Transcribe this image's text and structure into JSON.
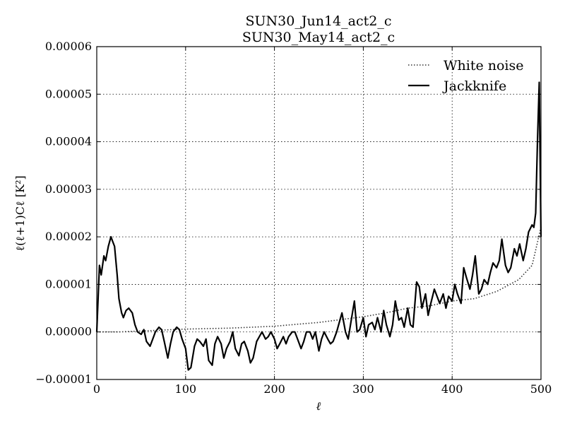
{
  "chart_data": {
    "type": "line",
    "title_lines": [
      "SUN30_Jun14_act2_c",
      "SUN30_May14_act2_c"
    ],
    "xlabel": "ℓ",
    "ylabel": "ℓ(ℓ+1)Cℓ [K²]",
    "xlim": [
      0,
      500
    ],
    "ylim": [
      -1e-05,
      6e-05
    ],
    "xticks": [
      0,
      100,
      200,
      300,
      400,
      500
    ],
    "xtick_labels": [
      "0",
      "100",
      "200",
      "300",
      "400",
      "500"
    ],
    "yticks": [
      -1e-05,
      0,
      1e-05,
      2e-05,
      3e-05,
      4e-05,
      5e-05,
      6e-05
    ],
    "ytick_labels": [
      "−0.00001",
      "0.00000",
      "0.00001",
      "0.00002",
      "0.00003",
      "0.00004",
      "0.00005",
      "0.00006"
    ],
    "grid": true,
    "legend_position": "top-right",
    "series": [
      {
        "name": "White noise",
        "style": "dotted",
        "color": "#333333",
        "x": [
          0,
          25,
          50,
          75,
          100,
          125,
          150,
          175,
          200,
          225,
          250,
          275,
          300,
          325,
          350,
          375,
          400,
          425,
          450,
          475,
          490,
          500
        ],
        "y": [
          0.0,
          0.0,
          2e-07,
          4e-07,
          6e-07,
          7e-07,
          8e-07,
          1e-06,
          1.2e-06,
          1.6e-06,
          2e-06,
          2.6e-06,
          3.2e-06,
          4e-06,
          5e-06,
          5.5e-06,
          6.5e-06,
          7e-06,
          8.5e-06,
          1.1e-05,
          1.4e-05,
          2.2e-05
        ]
      },
      {
        "name": "Jackknife",
        "style": "solid",
        "color": "#000000",
        "x": [
          0,
          3,
          5,
          8,
          10,
          13,
          16,
          18,
          20,
          23,
          25,
          28,
          30,
          33,
          36,
          40,
          43,
          46,
          50,
          53,
          56,
          60,
          63,
          66,
          70,
          73,
          76,
          80,
          83,
          86,
          90,
          93,
          96,
          100,
          103,
          106,
          110,
          113,
          116,
          120,
          123,
          126,
          130,
          133,
          136,
          140,
          143,
          146,
          150,
          153,
          156,
          160,
          163,
          166,
          170,
          173,
          176,
          180,
          183,
          186,
          190,
          193,
          196,
          200,
          203,
          206,
          210,
          213,
          216,
          220,
          223,
          226,
          230,
          233,
          236,
          240,
          243,
          246,
          250,
          253,
          256,
          260,
          263,
          266,
          270,
          273,
          276,
          280,
          283,
          286,
          290,
          293,
          296,
          300,
          303,
          306,
          310,
          313,
          316,
          320,
          323,
          326,
          330,
          333,
          336,
          340,
          343,
          346,
          350,
          353,
          356,
          360,
          363,
          366,
          370,
          373,
          376,
          380,
          383,
          386,
          390,
          393,
          396,
          400,
          403,
          406,
          410,
          413,
          416,
          420,
          423,
          426,
          430,
          433,
          436,
          440,
          443,
          446,
          450,
          453,
          456,
          460,
          463,
          466,
          470,
          473,
          476,
          480,
          483,
          486,
          490,
          492,
          494,
          496,
          498,
          500
        ],
        "y": [
          0.0,
          1.4e-05,
          1.2e-05,
          1.6e-05,
          1.5e-05,
          1.8e-05,
          2e-05,
          1.9e-05,
          1.8e-05,
          1.2e-05,
          7e-06,
          4e-06,
          3e-06,
          4.5e-06,
          5e-06,
          4e-06,
          1.5e-06,
          0.0,
          -5e-07,
          5e-07,
          -2e-06,
          -3e-06,
          -1.5e-06,
          0.0,
          1e-06,
          5e-07,
          -2e-06,
          -5.5e-06,
          -2.5e-06,
          0.0,
          1e-06,
          5e-07,
          -1.5e-06,
          -3.5e-06,
          -8e-06,
          -7.5e-06,
          -3e-06,
          -1.5e-06,
          -2e-06,
          -3e-06,
          -1.5e-06,
          -6e-06,
          -7e-06,
          -2.5e-06,
          -1e-06,
          -2.5e-06,
          -5.5e-06,
          -3.5e-06,
          -2e-06,
          0.0,
          -3.5e-06,
          -5e-06,
          -2.5e-06,
          -2e-06,
          -4e-06,
          -6.5e-06,
          -5.5e-06,
          -2e-06,
          -1e-06,
          0.0,
          -1.5e-06,
          -1e-06,
          0.0,
          -1.5e-06,
          -3.5e-06,
          -2.5e-06,
          -1e-06,
          -2.5e-06,
          -1e-06,
          0.0,
          0.0,
          -1.5e-06,
          -3.5e-06,
          -2e-06,
          0.0,
          0.0,
          -1.5e-06,
          0.0,
          -4e-06,
          -1.5e-06,
          0.0,
          -1.5e-06,
          -2.5e-06,
          -2e-06,
          0.0,
          2e-06,
          4e-06,
          0.0,
          -1.5e-06,
          2e-06,
          6.5e-06,
          0.0,
          5e-07,
          3e-06,
          -1e-06,
          1.5e-06,
          2e-06,
          5e-07,
          3e-06,
          0.0,
          4.5e-06,
          1.5e-06,
          -1e-06,
          1.5e-06,
          6.5e-06,
          2.5e-06,
          3e-06,
          1e-06,
          5e-06,
          1.5e-06,
          1e-06,
          1.05e-05,
          9.5e-06,
          5e-06,
          8e-06,
          3.5e-06,
          6e-06,
          9e-06,
          7.5e-06,
          6e-06,
          8e-06,
          5e-06,
          7.5e-06,
          6.5e-06,
          1e-05,
          8e-06,
          6e-06,
          1.35e-05,
          1.15e-05,
          9e-06,
          1.2e-05,
          1.6e-05,
          8e-06,
          9e-06,
          1.1e-05,
          1e-05,
          1.25e-05,
          1.45e-05,
          1.35e-05,
          1.5e-05,
          1.95e-05,
          1.4e-05,
          1.25e-05,
          1.35e-05,
          1.75e-05,
          1.6e-05,
          1.85e-05,
          1.5e-05,
          1.75e-05,
          2.1e-05,
          2.25e-05,
          2.2e-05,
          2.5e-05,
          4e-05,
          5.25e-05,
          2e-05
        ]
      }
    ]
  }
}
